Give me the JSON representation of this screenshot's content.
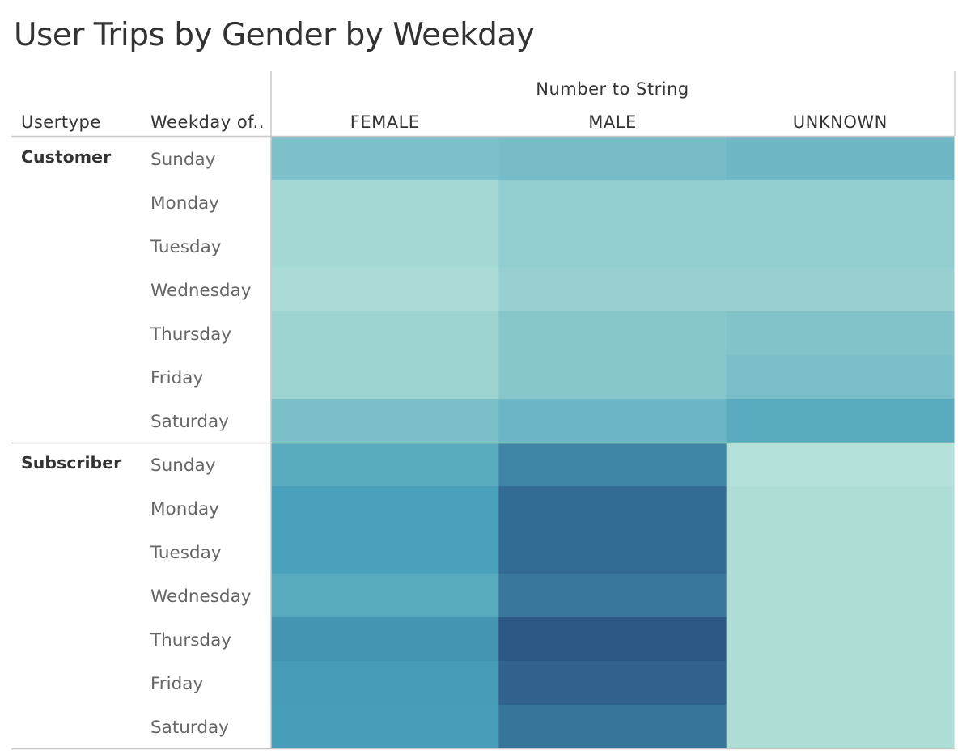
{
  "chart_data": {
    "type": "heatmap",
    "title": "User Trips by Gender by Weekday",
    "row_headers": [
      "Usertype",
      "Weekday of.."
    ],
    "column_group_label": "Number to String",
    "columns": [
      "FEMALE",
      "MALE",
      "UNKNOWN"
    ],
    "color_scale": [
      "#b9e4da",
      "#2d5886"
    ],
    "rows": [
      {
        "usertype": "Customer",
        "days": [
          {
            "day": "Sunday",
            "values": [
              0.28,
              0.32,
              0.36
            ]
          },
          {
            "day": "Monday",
            "values": [
              0.1,
              0.19,
              0.19
            ]
          },
          {
            "day": "Tuesday",
            "values": [
              0.1,
              0.19,
              0.19
            ]
          },
          {
            "day": "Wednesday",
            "values": [
              0.07,
              0.16,
              0.16
            ]
          },
          {
            "day": "Thursday",
            "values": [
              0.13,
              0.24,
              0.27
            ]
          },
          {
            "day": "Friday",
            "values": [
              0.13,
              0.24,
              0.3
            ]
          },
          {
            "day": "Saturday",
            "values": [
              0.3,
              0.38,
              0.46
            ]
          }
        ]
      },
      {
        "usertype": "Subscriber",
        "days": [
          {
            "day": "Sunday",
            "values": [
              0.46,
              0.72,
              0.03
            ]
          },
          {
            "day": "Monday",
            "values": [
              0.54,
              0.88,
              0.05
            ]
          },
          {
            "day": "Tuesday",
            "values": [
              0.54,
              0.88,
              0.05
            ]
          },
          {
            "day": "Wednesday",
            "values": [
              0.47,
              0.81,
              0.05
            ]
          },
          {
            "day": "Thursday",
            "values": [
              0.62,
              1.0,
              0.05
            ]
          },
          {
            "day": "Friday",
            "values": [
              0.58,
              0.94,
              0.05
            ]
          },
          {
            "day": "Saturday",
            "values": [
              0.56,
              0.82,
              0.05
            ]
          }
        ]
      }
    ]
  }
}
